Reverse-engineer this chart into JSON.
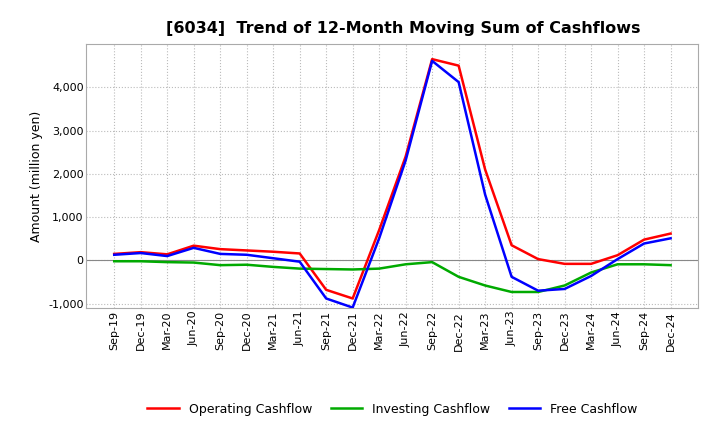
{
  "title": "[6034]  Trend of 12-Month Moving Sum of Cashflows",
  "ylabel": "Amount (million yen)",
  "x_labels": [
    "Sep-19",
    "Dec-19",
    "Mar-20",
    "Jun-20",
    "Sep-20",
    "Dec-20",
    "Mar-21",
    "Jun-21",
    "Sep-21",
    "Dec-21",
    "Mar-22",
    "Jun-22",
    "Sep-22",
    "Dec-22",
    "Mar-23",
    "Jun-23",
    "Sep-23",
    "Dec-23",
    "Mar-24",
    "Jun-24",
    "Sep-24",
    "Dec-24"
  ],
  "operating": [
    150,
    190,
    140,
    340,
    260,
    230,
    200,
    160,
    -680,
    -880,
    700,
    2400,
    4650,
    4500,
    2100,
    350,
    30,
    -80,
    -80,
    120,
    480,
    620
  ],
  "investing": [
    -20,
    -20,
    -40,
    -50,
    -110,
    -100,
    -150,
    -190,
    -200,
    -210,
    -190,
    -90,
    -40,
    -380,
    -580,
    -730,
    -730,
    -580,
    -280,
    -90,
    -90,
    -110
  ],
  "free": [
    130,
    170,
    100,
    290,
    150,
    130,
    50,
    -30,
    -880,
    -1090,
    510,
    2310,
    4610,
    4120,
    1520,
    -380,
    -700,
    -660,
    -360,
    30,
    390,
    510
  ],
  "ylim": [
    -1100,
    5000
  ],
  "yticks": [
    -1000,
    0,
    1000,
    2000,
    3000,
    4000
  ],
  "operating_color": "#ff0000",
  "investing_color": "#00aa00",
  "free_color": "#0000ff",
  "line_width": 1.8,
  "bg_color": "#ffffff",
  "plot_bg_color": "#ffffff",
  "grid_color": "#bbbbbb",
  "title_fontsize": 11.5,
  "label_fontsize": 9,
  "tick_fontsize": 8,
  "legend_fontsize": 9
}
